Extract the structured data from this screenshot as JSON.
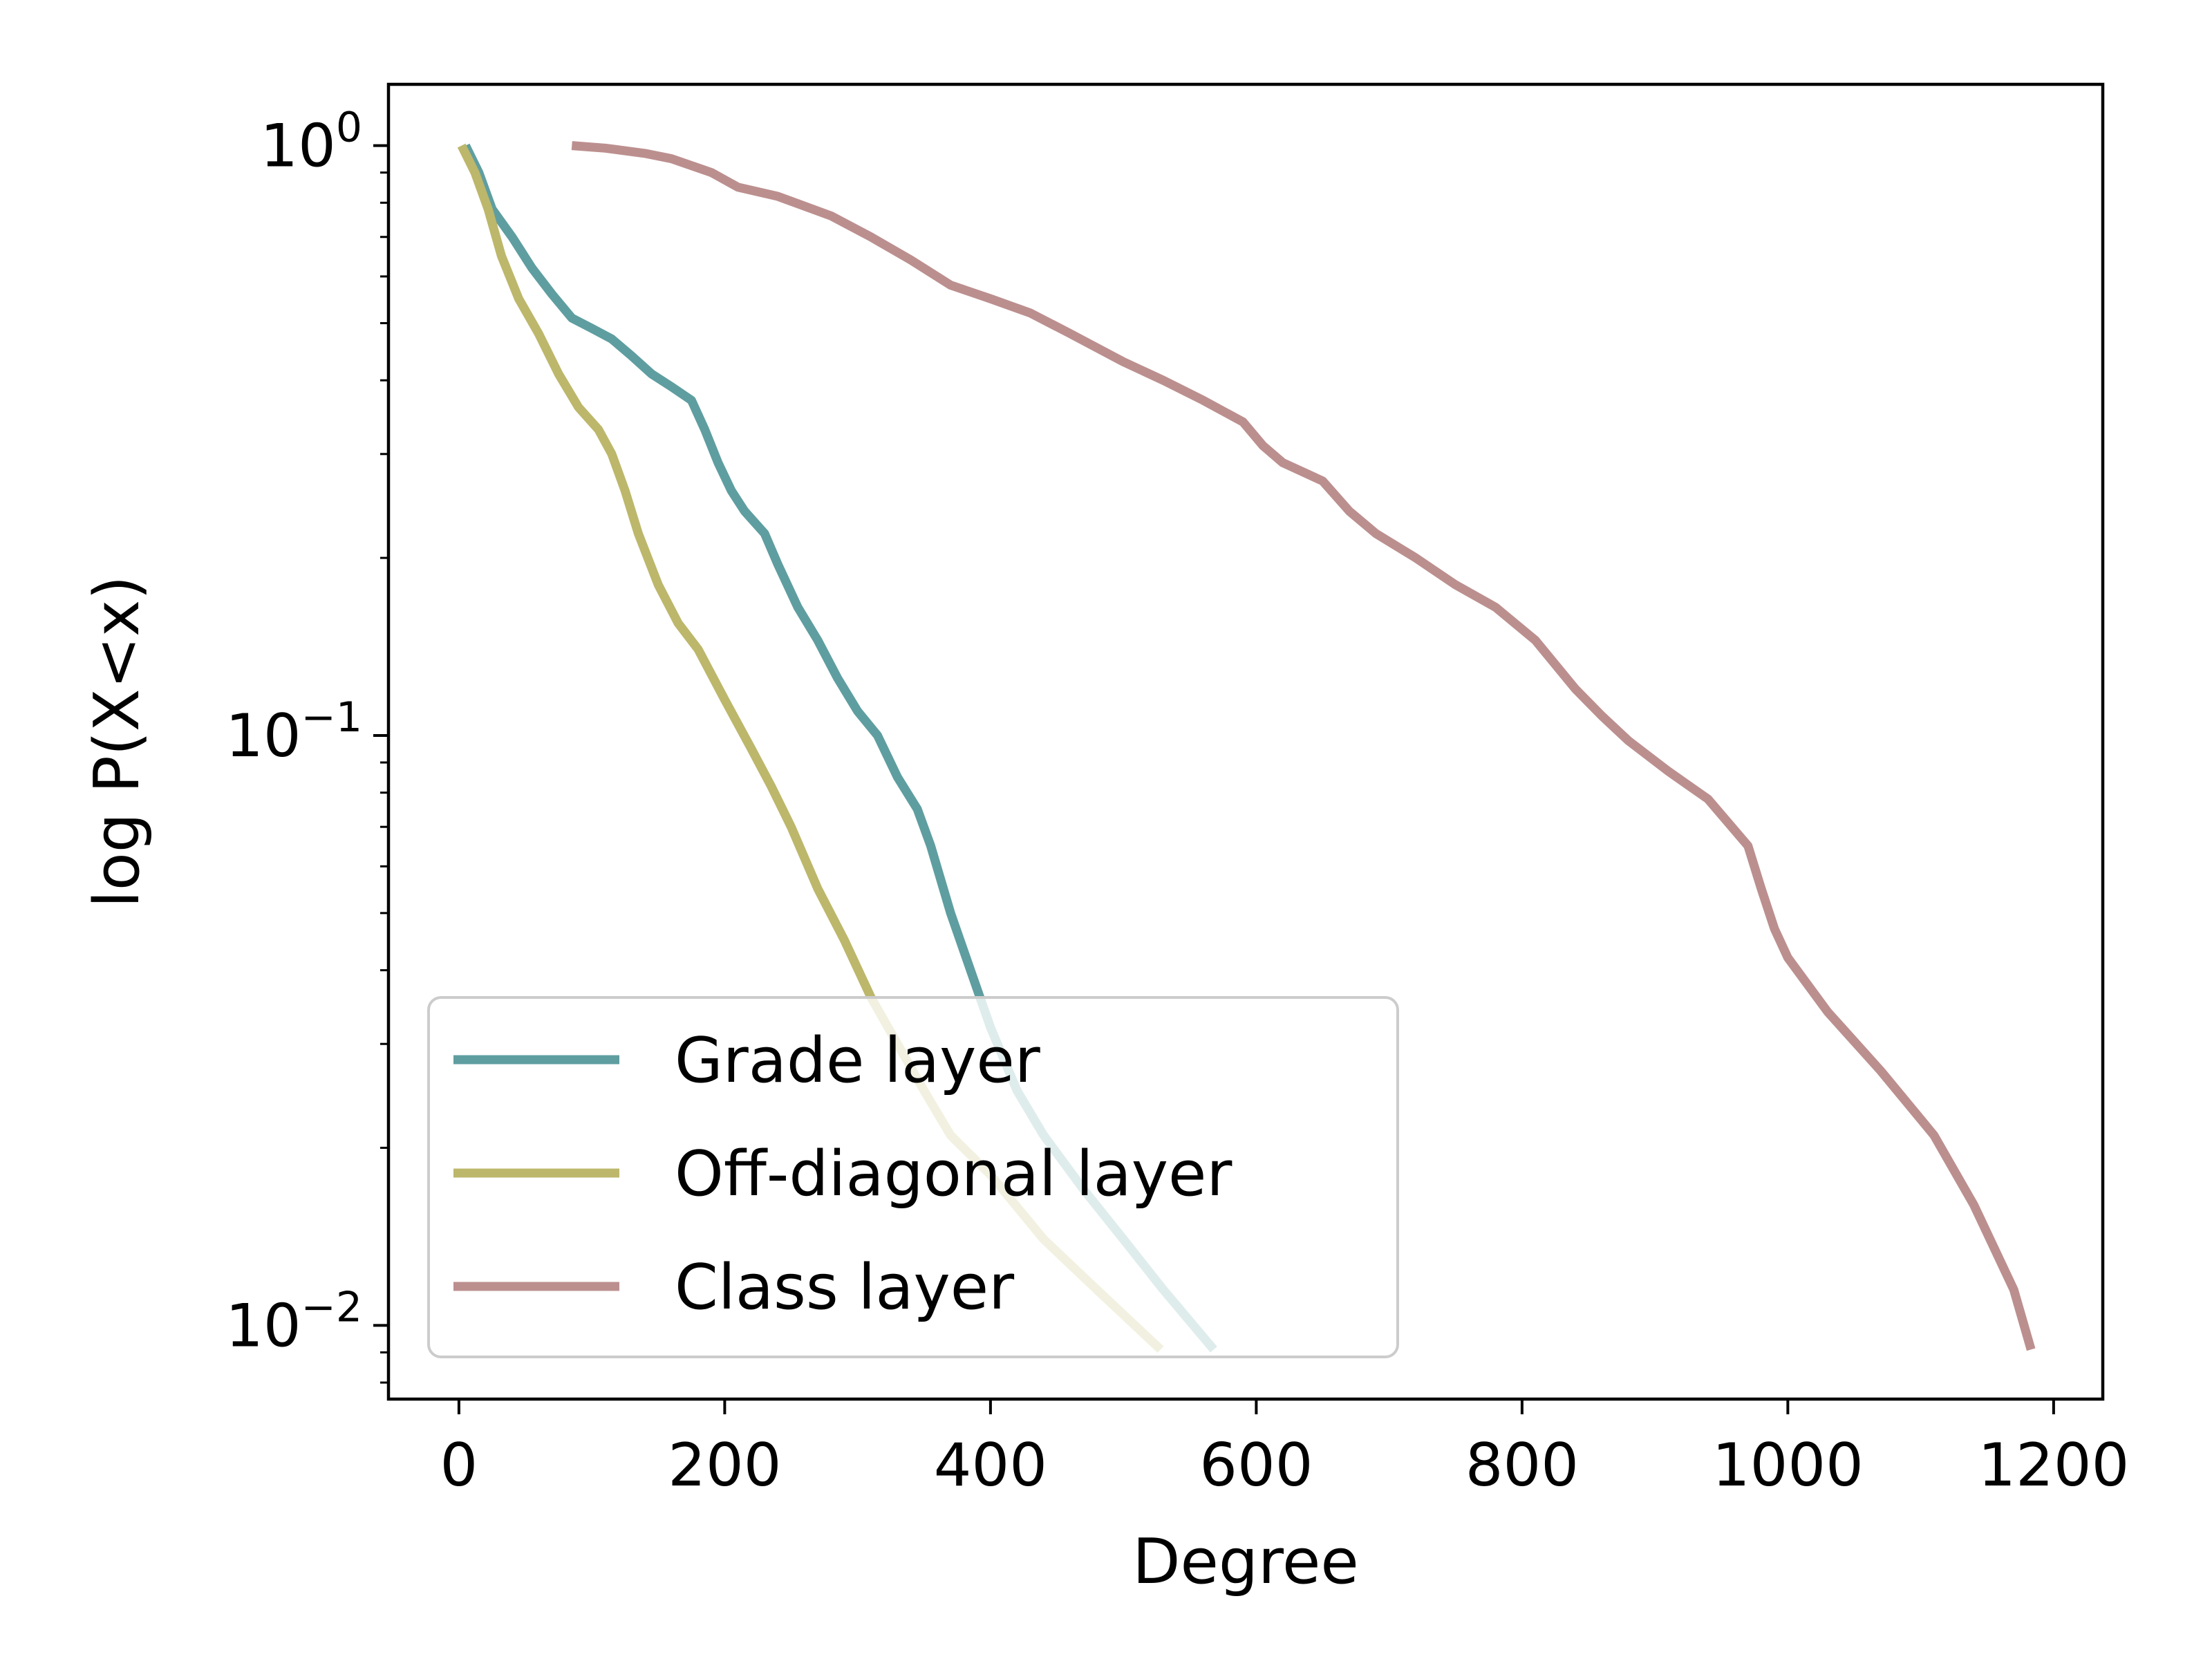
{
  "chart_data": {
    "type": "line",
    "title": "",
    "xlabel": "Degree",
    "ylabel": "log P(X<x)",
    "yscale": "log",
    "xlim": [
      -53,
      1237
    ],
    "ylim": [
      0.0075,
      1.27
    ],
    "xticks": [
      {
        "value": 0,
        "label": "0"
      },
      {
        "value": 200,
        "label": "200"
      },
      {
        "value": 400,
        "label": "400"
      },
      {
        "value": 600,
        "label": "600"
      },
      {
        "value": 800,
        "label": "800"
      },
      {
        "value": 1000,
        "label": "1000"
      },
      {
        "value": 1200,
        "label": "1200"
      }
    ],
    "yticks": [
      {
        "value": 1,
        "base": "10",
        "exp": "0"
      },
      {
        "value": 0.1,
        "base": "10",
        "exp": "−1"
      },
      {
        "value": 0.01,
        "base": "10",
        "exp": "−2"
      }
    ],
    "grid": false,
    "legend_position": "lower-left",
    "series": [
      {
        "name": "Grade layer",
        "color": "#5f9ea0",
        "x": [
          5,
          15,
          25,
          40,
          55,
          70,
          85,
          100,
          115,
          130,
          145,
          160,
          175,
          185,
          195,
          205,
          215,
          230,
          240,
          255,
          270,
          285,
          300,
          315,
          330,
          345,
          355,
          370,
          385,
          400,
          420,
          440,
          470,
          500,
          530,
          568
        ],
        "y": [
          1.0,
          0.9,
          0.78,
          0.7,
          0.62,
          0.56,
          0.51,
          0.49,
          0.47,
          0.44,
          0.41,
          0.39,
          0.37,
          0.33,
          0.29,
          0.26,
          0.24,
          0.22,
          0.195,
          0.165,
          0.145,
          0.125,
          0.11,
          0.1,
          0.085,
          0.075,
          0.065,
          0.05,
          0.04,
          0.032,
          0.025,
          0.021,
          0.017,
          0.014,
          0.0115,
          0.0091
        ]
      },
      {
        "name": "Off-diagonal layer",
        "color": "#bdb76b",
        "x": [
          2,
          12,
          22,
          32,
          45,
          60,
          75,
          90,
          105,
          115,
          125,
          135,
          150,
          165,
          180,
          200,
          220,
          235,
          250,
          270,
          290,
          310,
          330,
          350,
          370,
          400,
          440,
          480,
          528
        ],
        "y": [
          1.0,
          0.9,
          0.78,
          0.65,
          0.55,
          0.48,
          0.41,
          0.36,
          0.33,
          0.3,
          0.26,
          0.22,
          0.18,
          0.155,
          0.14,
          0.115,
          0.095,
          0.082,
          0.07,
          0.055,
          0.045,
          0.036,
          0.03,
          0.025,
          0.021,
          0.018,
          0.014,
          0.0115,
          0.0091
        ]
      },
      {
        "name": "Class layer",
        "color": "#bc8f8f",
        "x": [
          85,
          110,
          140,
          160,
          190,
          210,
          240,
          280,
          310,
          340,
          370,
          400,
          430,
          460,
          500,
          530,
          560,
          590,
          605,
          620,
          650,
          670,
          690,
          720,
          750,
          780,
          810,
          840,
          860,
          880,
          910,
          940,
          970,
          980,
          990,
          1000,
          1030,
          1070,
          1110,
          1140,
          1170,
          1183
        ],
        "y": [
          1.0,
          0.99,
          0.97,
          0.95,
          0.9,
          0.85,
          0.82,
          0.76,
          0.7,
          0.64,
          0.58,
          0.55,
          0.52,
          0.48,
          0.43,
          0.4,
          0.37,
          0.34,
          0.31,
          0.29,
          0.27,
          0.24,
          0.22,
          0.2,
          0.18,
          0.165,
          0.145,
          0.12,
          0.108,
          0.098,
          0.087,
          0.078,
          0.065,
          0.055,
          0.047,
          0.042,
          0.034,
          0.027,
          0.021,
          0.016,
          0.0115,
          0.0091
        ]
      }
    ]
  }
}
